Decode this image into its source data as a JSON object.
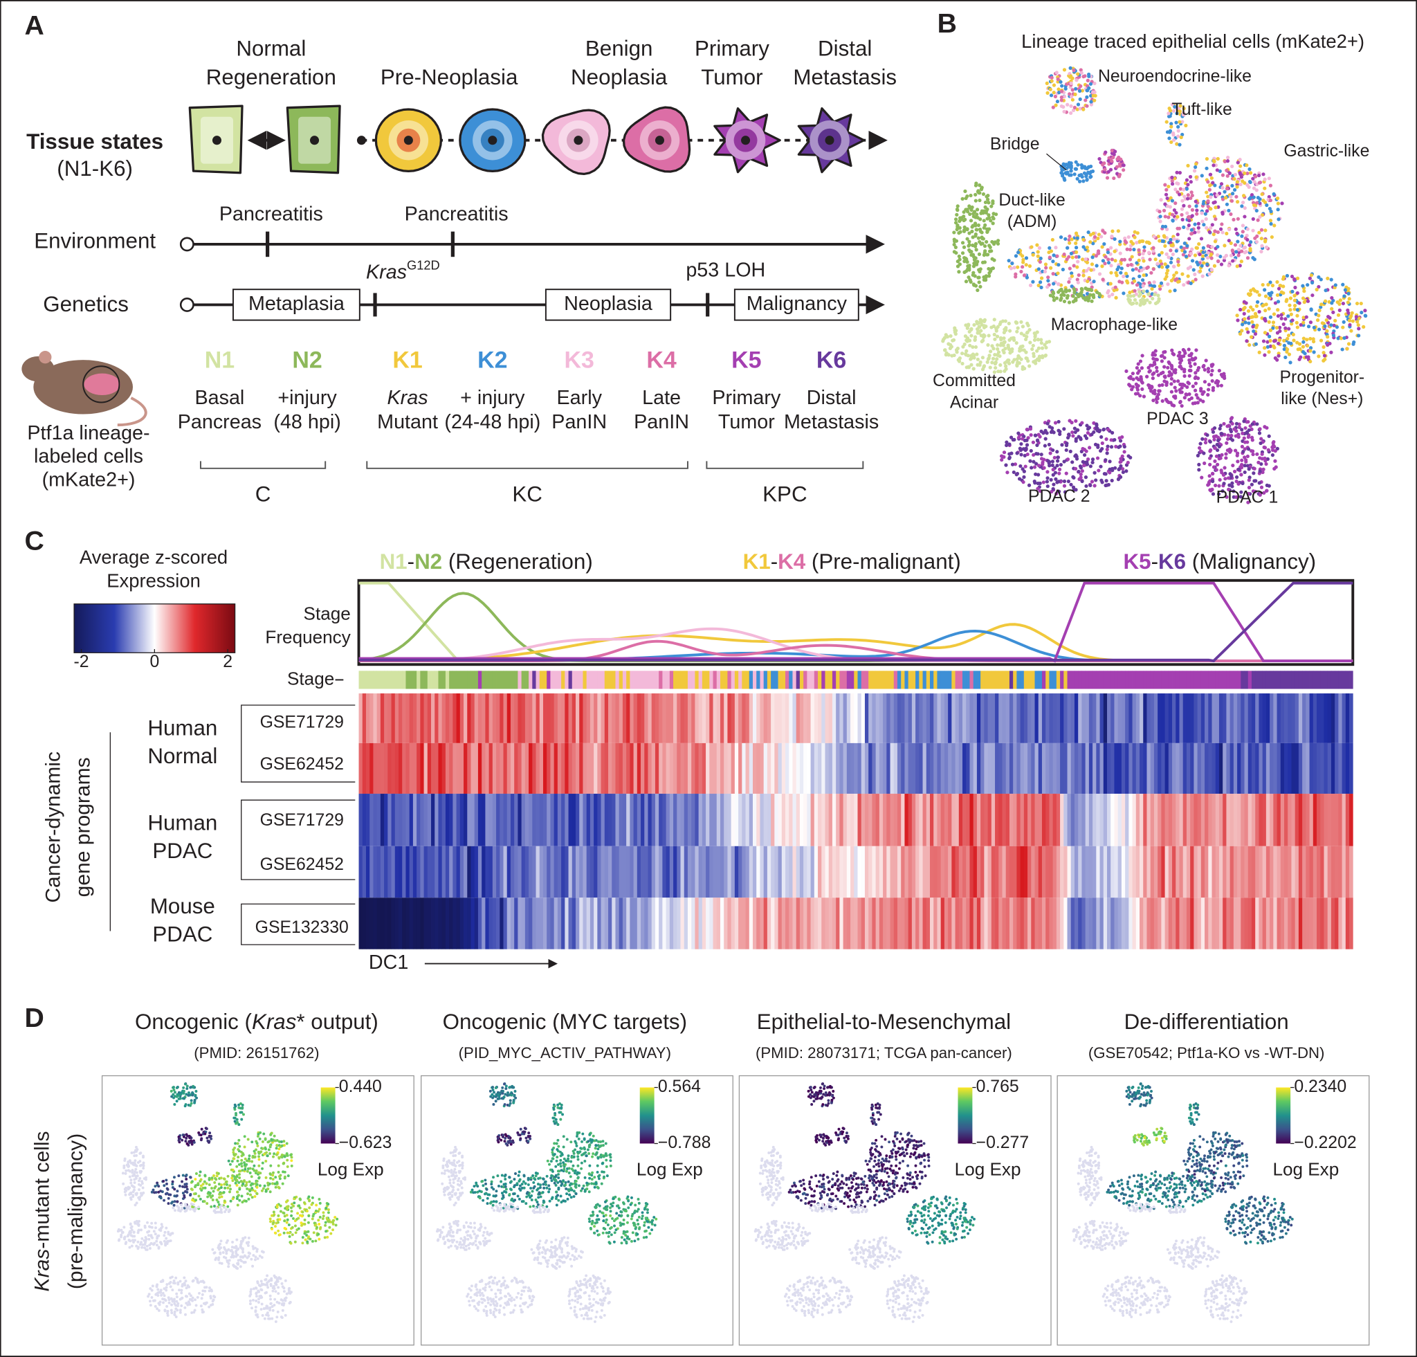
{
  "panel_a": {
    "label": "A",
    "stage_headers": [
      [
        "Normal",
        "Regeneration"
      ],
      [
        "Pre-Neoplasia"
      ],
      [
        "Benign",
        "Neoplasia"
      ],
      [
        "Primary",
        "Tumor"
      ],
      [
        "Distal",
        "Metastasis"
      ]
    ],
    "tissue_states": [
      "Tissue states",
      "(N1-K6)"
    ],
    "environment": {
      "label": "Environment",
      "events": [
        "Pancreatitis",
        "Pancreatitis"
      ]
    },
    "genetics": {
      "label": "Genetics",
      "boxes": [
        "Metaplasia",
        "Neoplasia",
        "Malignancy"
      ],
      "kras": "Kras",
      "kras_allele": "G12D",
      "p53": "p53 LOH"
    },
    "stages": [
      {
        "code": "N1",
        "color": "#d2e3a2",
        "description": [
          "Basal",
          "Pancreas"
        ]
      },
      {
        "code": "N2",
        "color": "#8db85a",
        "description": [
          "+injury",
          "(48 hpi)"
        ]
      },
      {
        "code": "K1",
        "color": "#f1c83c",
        "description": [
          "Kras",
          "Mutant"
        ]
      },
      {
        "code": "K2",
        "color": "#3d8fd6",
        "description": [
          "+ injury",
          "(24-48 hpi)"
        ]
      },
      {
        "code": "K3",
        "color": "#f3b9d9",
        "description": [
          "Early",
          "PanIN"
        ]
      },
      {
        "code": "K4",
        "color": "#dc6ea6",
        "description": [
          "Late",
          "PanIN"
        ]
      },
      {
        "code": "K5",
        "color": "#a43fb1",
        "description": [
          "Primary",
          "Tumor"
        ]
      },
      {
        "code": "K6",
        "color": "#67399d",
        "description": [
          "Distal",
          "Metastasis"
        ]
      }
    ],
    "groups": [
      "C",
      "KC",
      "KPC"
    ],
    "mouse_label": [
      "Ptf1a lineage-",
      "labeled cells",
      "(mKate2+)"
    ]
  },
  "panel_b": {
    "label": "B",
    "title": "Lineage traced epithelial cells (mKate2+)",
    "clusters": [
      [
        "Neuroendocrine-like"
      ],
      [
        "Tuft-like"
      ],
      [
        "Bridge"
      ],
      [
        "Gastric-like"
      ],
      [
        "Duct-like",
        "(ADM)"
      ],
      [
        "Macrophage-like"
      ],
      [
        "Committed",
        "Acinar"
      ],
      [
        "Progenitor-",
        "like (Nes+)"
      ],
      [
        "PDAC 3"
      ],
      [
        "PDAC 2"
      ],
      [
        "PDAC 1"
      ]
    ]
  },
  "panel_c": {
    "label": "C",
    "legend_title": [
      "Average z-scored",
      "Expression"
    ],
    "colorbar_lim": [
      -2,
      2
    ],
    "colorbar_ticks": [
      -2,
      0,
      2
    ],
    "headers": [
      [
        "N1",
        "-",
        "N2",
        " (Regeneration)"
      ],
      [
        "K1",
        "-",
        "K4",
        " (Pre-malignant)"
      ],
      [
        "K5",
        "-",
        "K6",
        " (Malignancy)"
      ]
    ],
    "frequency_label": [
      "Stage",
      "Frequency"
    ],
    "stage_label": "Stage",
    "row_groups": [
      {
        "name": [
          "Human",
          "Normal"
        ],
        "datasets": [
          "GSE71729",
          "GSE62452"
        ]
      },
      {
        "name": [
          "Human",
          "PDAC"
        ],
        "datasets": [
          "GSE71729",
          "GSE62452"
        ]
      },
      {
        "name": [
          "Mouse",
          "PDAC"
        ],
        "datasets": [
          "GSE132330"
        ]
      }
    ],
    "y_label": [
      "Cancer-dynamic",
      "gene programs"
    ],
    "x_label": "DC1"
  },
  "panel_d": {
    "label": "D",
    "y_label": [
      [
        "Kras",
        "-mutant cells"
      ],
      [
        "(pre-malignancy)"
      ]
    ],
    "plots": [
      {
        "title": [
          "Oncogenic (",
          "Kras",
          "* output)"
        ],
        "subtitle": "(PMID: 26151762)",
        "cbar_lim": [
          -0.623,
          0.44
        ],
        "cbar_ticks": [
          {
            "value": 0.44,
            "label": "0.440"
          },
          {
            "value": -0.623,
            "label": "−0.623"
          }
        ],
        "cbar_label": "Log Exp"
      },
      {
        "title": [
          "Oncogenic (MYC targets)"
        ],
        "subtitle": "(PID_MYC_ACTIV_PATHWAY)",
        "cbar_lim": [
          -0.788,
          0.564
        ],
        "cbar_ticks": [
          0.564,
          {
            "value": -0.788,
            "label": "−0.788"
          }
        ],
        "cbar_label": "Log Exp"
      },
      {
        "title": [
          "Epithelial-to-Mesenchymal"
        ],
        "subtitle": "(PMID: 28073171; TCGA pan-cancer)",
        "cbar_lim": [
          -0.277,
          0.765
        ],
        "cbar_ticks": [
          0.765,
          {
            "value": -0.277,
            "label": "−0.277"
          }
        ],
        "cbar_label": "Log Exp"
      },
      {
        "title": [
          "De-differentiation"
        ],
        "subtitle": "(GSE70542; Ptf1a-KO vs -WT-DN)",
        "cbar_lim": [
          -0.2202,
          0.234
        ],
        "cbar_ticks": [
          {
            "value": 0.234,
            "label": "0.2340"
          },
          {
            "value": -0.2202,
            "label": "−0.2202"
          }
        ],
        "cbar_label": "Log Exp"
      }
    ]
  }
}
